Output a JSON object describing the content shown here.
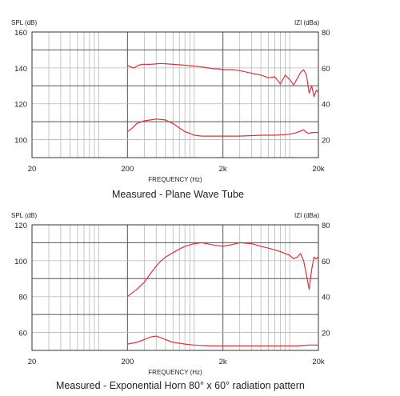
{
  "chart_data": [
    {
      "type": "line",
      "title": "",
      "caption": "Measured - Plane Wave Tube",
      "xlabel": "FREQUENCY (Hz)",
      "ylabel": "SPL (dB)",
      "ylabel_right": "IZI (dBa)",
      "x_scale": "log",
      "xlim": [
        20,
        20000
      ],
      "ylim": [
        90,
        160
      ],
      "ylim_right": [
        10,
        80
      ],
      "x_ticks": [
        {
          "v": 20,
          "label": "20"
        },
        {
          "v": 200,
          "label": "200"
        },
        {
          "v": 2000,
          "label": "2k"
        },
        {
          "v": 20000,
          "label": "20k"
        }
      ],
      "y_ticks": [
        100,
        120,
        140,
        160
      ],
      "y_ticks_right": [
        20,
        40,
        60,
        80
      ],
      "grid": true,
      "color": "#e0303a",
      "series": [
        {
          "axis": "left",
          "x": [
            200,
            215,
            235,
            260,
            290,
            350,
            450,
            600,
            800,
            1000,
            1200,
            1400,
            1600,
            1800,
            2000,
            2500,
            3000,
            4000,
            5000,
            6000,
            7000,
            8000,
            9000,
            10000,
            11000,
            12000,
            13000,
            14000,
            15000,
            16000,
            17000,
            18000,
            19000,
            20000
          ],
          "y": [
            141.5,
            140.5,
            140.0,
            141.5,
            142.0,
            142.0,
            142.5,
            142.0,
            141.5,
            141.0,
            140.5,
            140.0,
            139.5,
            139.5,
            139.0,
            139.0,
            138.5,
            137.0,
            136.0,
            134.5,
            135.0,
            131.0,
            136.0,
            133.5,
            130.5,
            134.0,
            137.5,
            139.0,
            136.0,
            126.0,
            130.0,
            124.0,
            127.5,
            126.5
          ]
        },
        {
          "axis": "right",
          "x": [
            200,
            220,
            250,
            300,
            350,
            400,
            500,
            600,
            700,
            800,
            900,
            1000,
            1200,
            1500,
            2000,
            3000,
            5000,
            7000,
            10000,
            12000,
            14000,
            15000,
            16000,
            17000,
            20000
          ],
          "y": [
            24.5,
            26.0,
            29.0,
            30.5,
            31.0,
            31.5,
            31.0,
            29.0,
            26.5,
            24.5,
            23.5,
            22.5,
            22.0,
            22.0,
            22.0,
            22.0,
            22.5,
            22.5,
            23.0,
            24.0,
            25.5,
            24.0,
            23.5,
            24.0,
            24.0
          ]
        }
      ]
    },
    {
      "type": "line",
      "title": "",
      "caption": "Measured - Exponential Horn 80° x 60° radiation pattern",
      "xlabel": "FREQUENCY (Hz)",
      "ylabel": "SPL (dB)",
      "ylabel_right": "IZI (dBa)",
      "x_scale": "log",
      "xlim": [
        20,
        20000
      ],
      "ylim": [
        50,
        120
      ],
      "ylim_right": [
        10,
        80
      ],
      "x_ticks": [
        {
          "v": 20,
          "label": "20"
        },
        {
          "v": 200,
          "label": "200"
        },
        {
          "v": 2000,
          "label": "2k"
        },
        {
          "v": 20000,
          "label": "20k"
        }
      ],
      "y_ticks": [
        60,
        80,
        100,
        120
      ],
      "y_ticks_right": [
        20,
        40,
        60,
        80
      ],
      "grid": true,
      "color": "#e0303a",
      "series": [
        {
          "axis": "left",
          "x": [
            200,
            250,
            300,
            350,
            400,
            450,
            500,
            600,
            700,
            800,
            1000,
            1200,
            1500,
            1700,
            2000,
            2500,
            3000,
            4000,
            5000,
            6000,
            7000,
            8000,
            9000,
            10000,
            11000,
            12000,
            13000,
            14000,
            15000,
            16000,
            17000,
            18000,
            19000,
            20000
          ],
          "y": [
            80.0,
            84.0,
            88.0,
            93.0,
            97.0,
            100.0,
            102.0,
            104.5,
            106.5,
            108.0,
            109.5,
            110.0,
            109.0,
            108.5,
            108.0,
            109.0,
            110.0,
            109.5,
            108.0,
            107.0,
            106.0,
            105.0,
            104.0,
            103.0,
            101.0,
            102.0,
            104.0,
            100.0,
            92.0,
            84.0,
            95.0,
            102.0,
            101.0,
            102.0
          ]
        },
        {
          "axis": "right",
          "x": [
            200,
            250,
            300,
            350,
            400,
            450,
            500,
            600,
            800,
            1000,
            1500,
            2000,
            3000,
            5000,
            8000,
            12000,
            16000,
            20000
          ],
          "y": [
            13.5,
            14.5,
            16.0,
            17.5,
            18.0,
            17.0,
            16.0,
            14.5,
            13.5,
            13.0,
            12.5,
            12.5,
            12.5,
            12.5,
            12.5,
            12.5,
            13.0,
            13.0
          ]
        }
      ]
    }
  ]
}
